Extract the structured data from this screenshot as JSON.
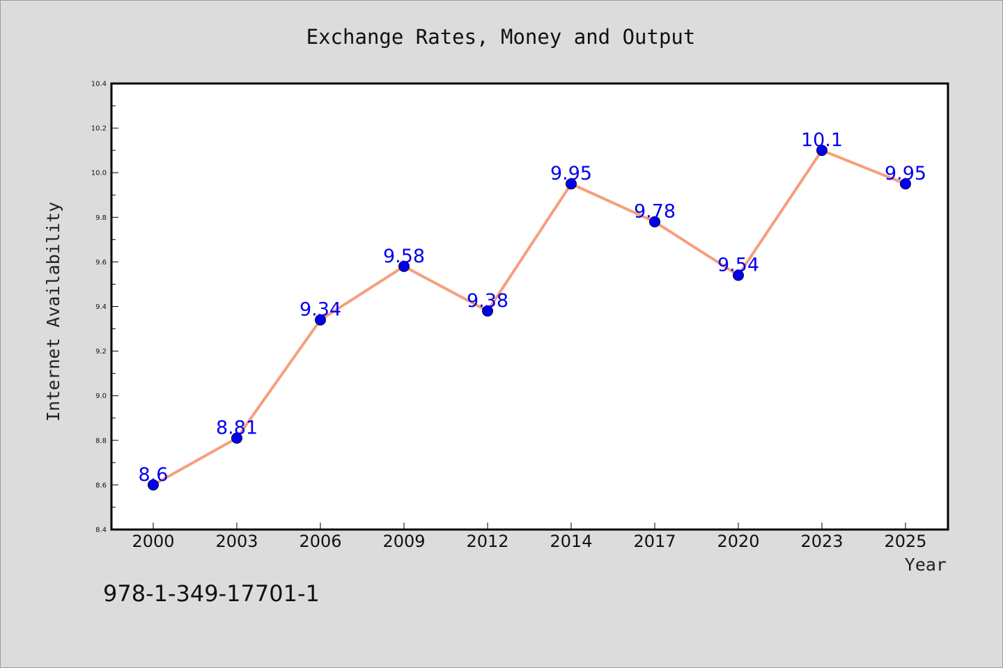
{
  "chart_data": {
    "type": "line",
    "title": "Exchange Rates, Money and Output",
    "xlabel": "Year",
    "ylabel": "Internet Availability",
    "categories": [
      "2000",
      "2003",
      "2006",
      "2009",
      "2012",
      "2014",
      "2017",
      "2020",
      "2023",
      "2025"
    ],
    "series": [
      {
        "values": [
          8.6,
          8.81,
          9.34,
          9.58,
          9.38,
          9.95,
          9.78,
          9.54,
          10.1,
          9.95
        ],
        "data_labels": [
          "8.6",
          "8.81",
          "9.34",
          "9.58",
          "9.38",
          "9.95",
          "9.78",
          "9.54",
          "10.1",
          "9.95"
        ],
        "line_color": "#f4a07c",
        "marker_color": "#0000ee",
        "label_color": "#0000ee"
      }
    ],
    "ylim": [
      8.4,
      10.4
    ],
    "yticks": [
      "8.4",
      "8.6",
      "8.8",
      "9.0",
      "9.2",
      "9.4",
      "9.6",
      "9.8",
      "10.0",
      "10.2",
      "10.4"
    ],
    "grid": false,
    "legend": "none",
    "plot_background": "#ffffff",
    "figure_background": "#dcdcdc"
  },
  "footer": {
    "isbn": "978-1-349-17701-1"
  }
}
